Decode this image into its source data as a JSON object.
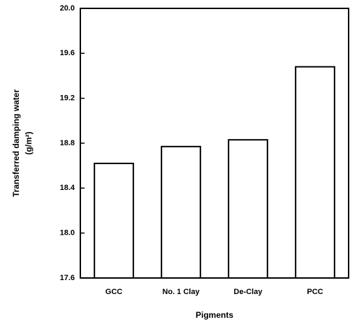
{
  "chart_data": {
    "type": "bar",
    "x_label": "Pigments",
    "y_label": [
      "Transferred damping water",
      "(g/m²)"
    ],
    "categories": [
      "GCC",
      "No. 1 Clay",
      "De-Clay",
      "PCC"
    ],
    "values": [
      18.62,
      18.77,
      18.83,
      19.48
    ],
    "color": "#ffffff",
    "ylim": [
      17.6,
      20.0
    ],
    "yticks": [
      17.6,
      {
        "value": 18.0,
        "label": "18.0"
      },
      18.4,
      18.8,
      19.2,
      19.6,
      {
        "value": 20.0,
        "label": "20.0"
      }
    ],
    "grid": false
  }
}
